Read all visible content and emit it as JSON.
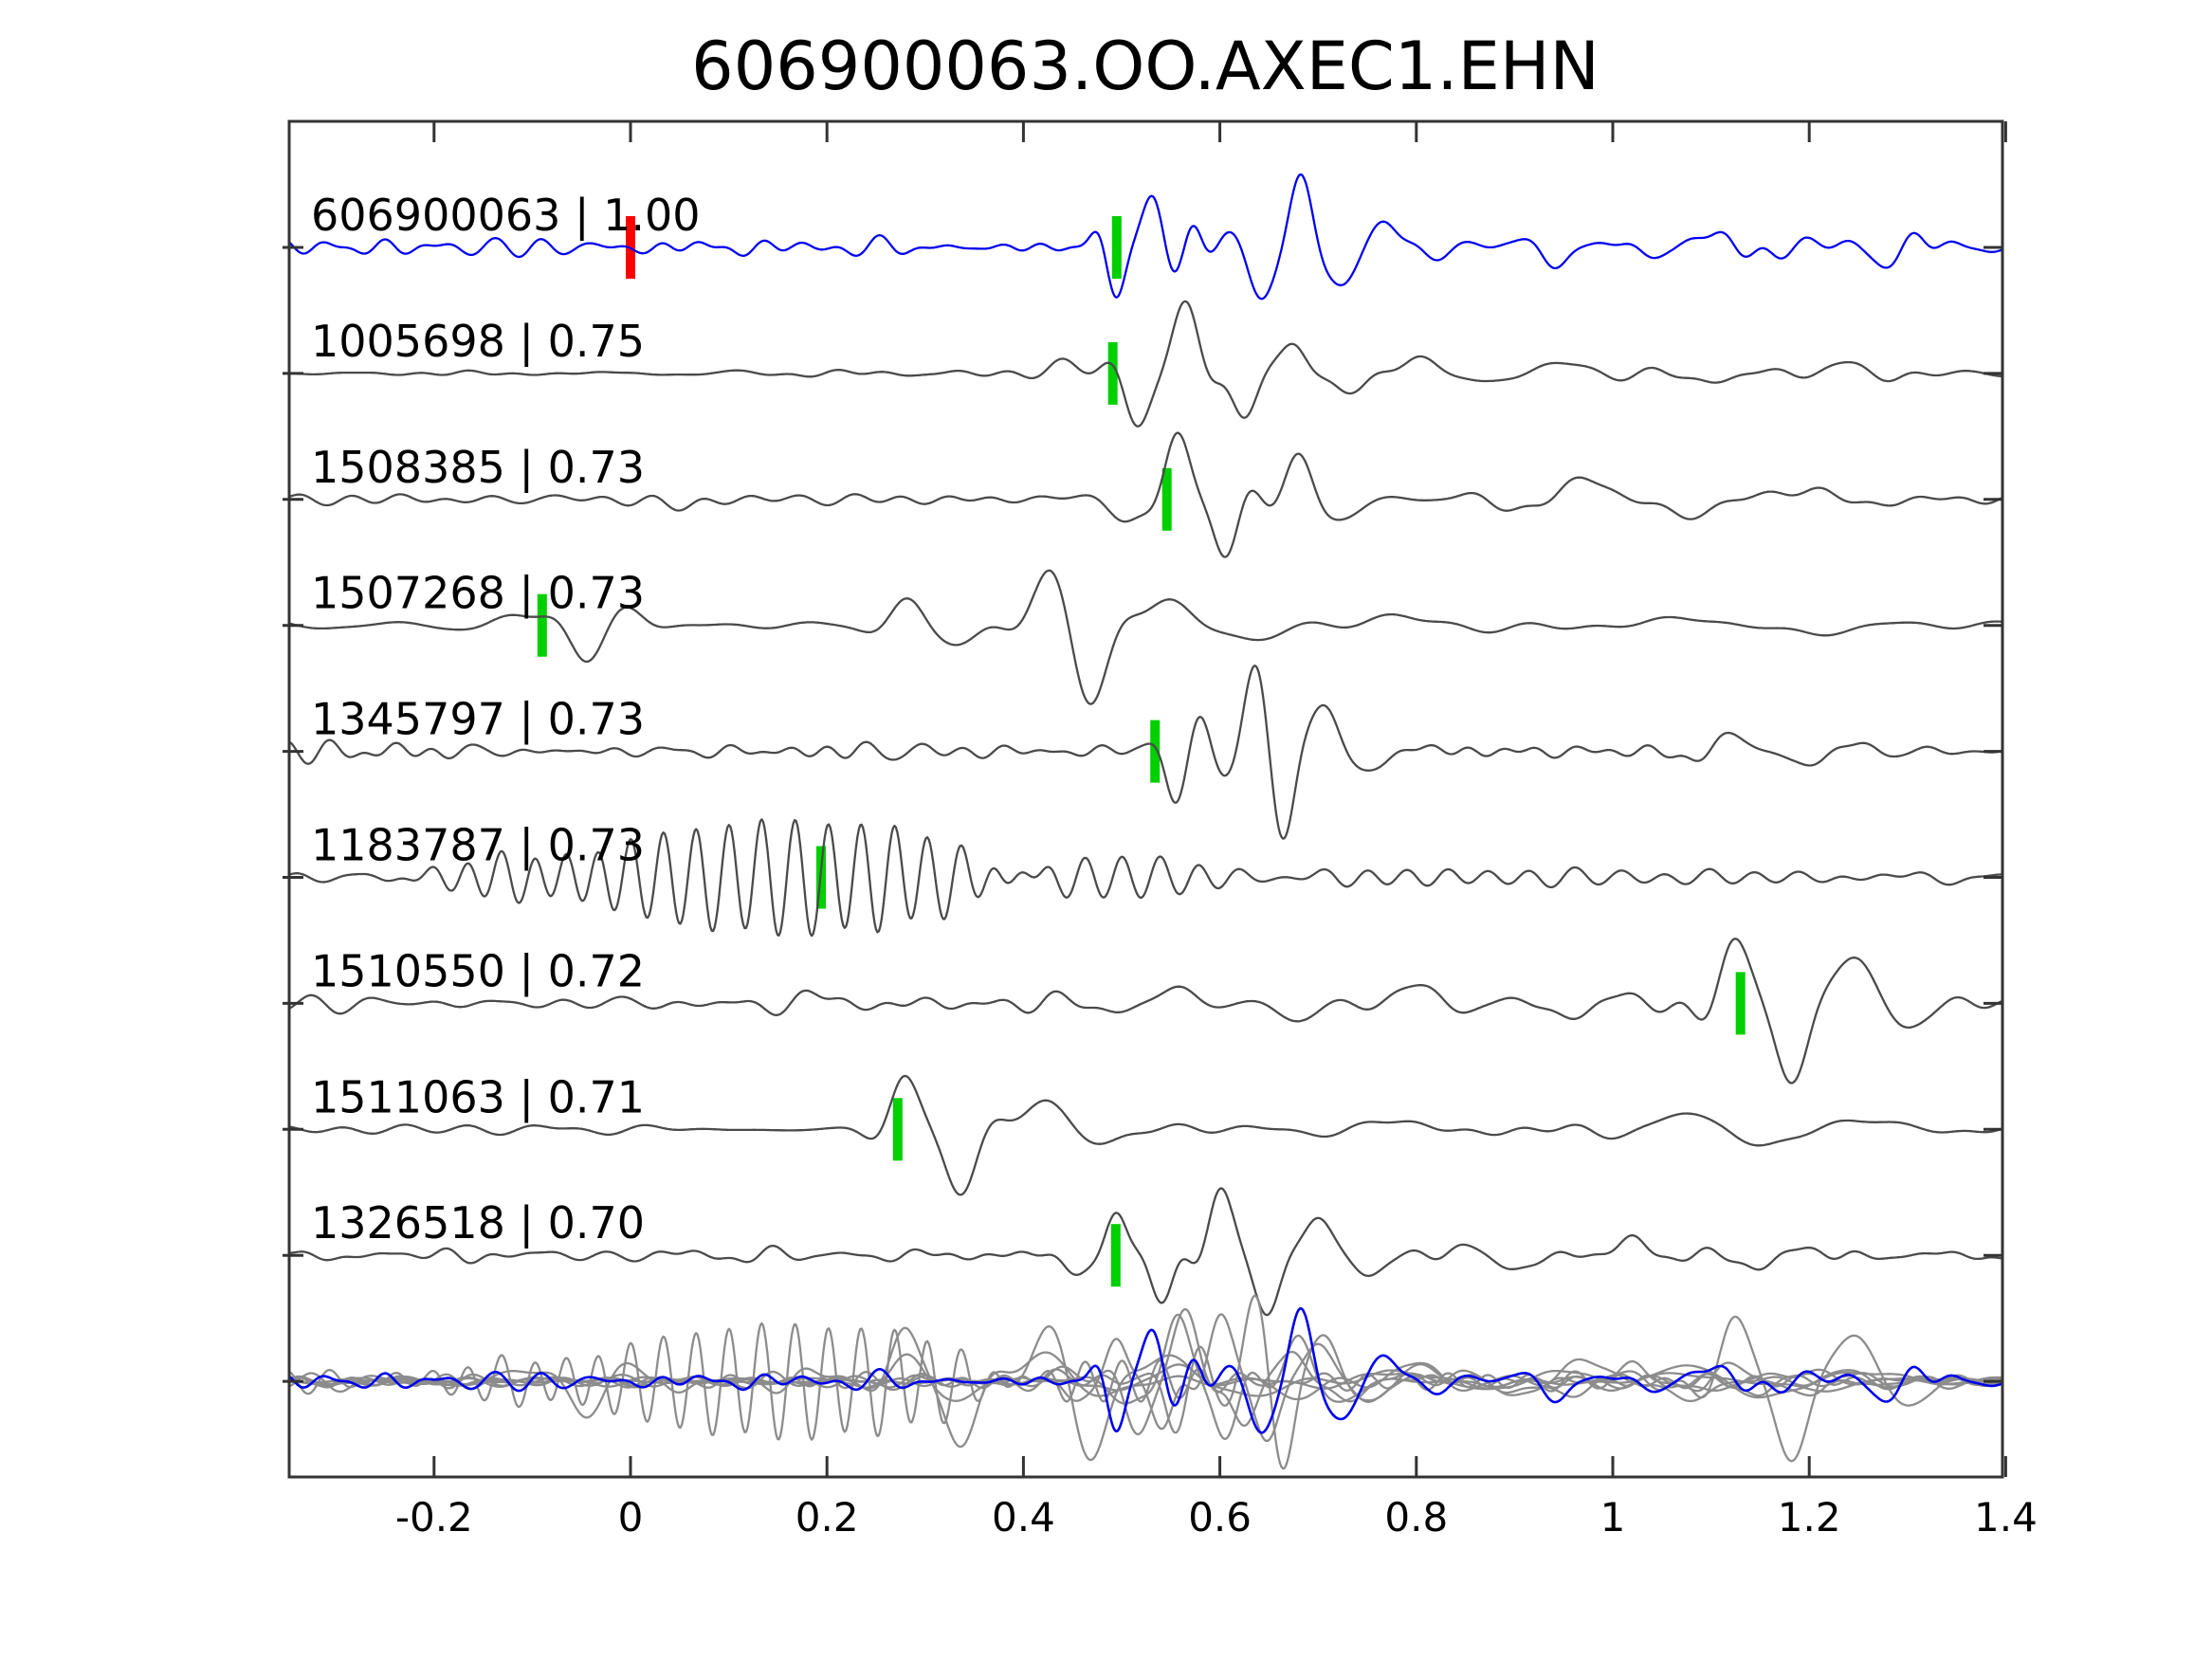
{
  "chart_data": {
    "type": "line",
    "title": "606900063.OO.AXEC1.EHN",
    "xlabel": "",
    "ylabel": "",
    "xlim": [
      -0.3475,
      1.3967
    ],
    "grid": false,
    "legend": null,
    "x_ticks": {
      "values": [
        -0.2,
        0,
        0.2,
        0.4,
        0.6,
        0.8,
        1,
        1.2,
        1.4
      ],
      "labels": [
        "-0.2",
        "0",
        "0.2",
        "0.4",
        "0.6",
        "0.8",
        "1",
        "1.2",
        "1.4"
      ]
    },
    "colors": {
      "template_trace": "#0000ee",
      "match_trace": "#4a4a4a",
      "stack_gray": "#8c8c8c",
      "pick_marker": "#00cf00",
      "reference_marker": "#ff0000",
      "frame": "#333333",
      "text": "#000000",
      "background": "#ffffff"
    },
    "traces": [
      {
        "id": "606900063",
        "corr": "1.00",
        "label": "606900063 | 1.00",
        "row": 0,
        "color": "#0000ee",
        "pick": {
          "t": 0.495,
          "color": "#00cf00"
        },
        "ref_mark": {
          "t": 0.0,
          "color": "#ff0000"
        },
        "synth": {
          "seed": 11,
          "noise_amp": 9,
          "noise_f": [
            8,
            32
          ],
          "noise_env": null,
          "packets": [
            [
              0.493,
              0.016,
              20,
              -45
            ],
            [
              0.532,
              0.02,
              16,
              55
            ],
            [
              0.572,
              0.016,
              18,
              28
            ],
            [
              0.641,
              0.02,
              14,
              -52
            ],
            [
              0.683,
              0.018,
              15,
              68
            ],
            [
              0.727,
              0.022,
              12,
              -28
            ],
            [
              0.772,
              0.03,
              10,
              20
            ],
            [
              0.95,
              0.04,
              9,
              -16
            ],
            [
              1.1,
              0.05,
              8,
              14
            ],
            [
              1.27,
              0.05,
              9,
              -14
            ]
          ]
        }
      },
      {
        "id": "1005698",
        "corr": "0.75",
        "label": "1005698 | 0.75",
        "row": 1,
        "color": "#4a4a4a",
        "pick": {
          "t": 0.491,
          "color": "#00cf00"
        },
        "synth": {
          "seed": 22,
          "noise_amp": 4.5,
          "noise_f": [
            6,
            26
          ],
          "noise_env": [
            [
              -0.35,
              0.5
            ],
            [
              0.2,
              0.75
            ],
            [
              0.42,
              1
            ],
            [
              1.4,
              1
            ]
          ],
          "packets": [
            [
              0.44,
              0.02,
              10,
              12
            ],
            [
              0.515,
              0.02,
              13,
              -50
            ],
            [
              0.565,
              0.022,
              12,
              75
            ],
            [
              0.625,
              0.02,
              13,
              -48
            ],
            [
              0.675,
              0.02,
              12,
              28
            ],
            [
              0.73,
              0.03,
              9,
              -16
            ],
            [
              0.8,
              0.04,
              8,
              14
            ],
            [
              0.95,
              0.05,
              7,
              12
            ],
            [
              1.1,
              0.05,
              7,
              -11
            ],
            [
              1.23,
              0.04,
              8,
              10
            ]
          ]
        }
      },
      {
        "id": "1508385",
        "corr": "0.73",
        "label": "1508385 | 0.73",
        "row": 2,
        "color": "#4a4a4a",
        "pick": {
          "t": 0.546,
          "color": "#00cf00"
        },
        "synth": {
          "seed": 33,
          "noise_amp": 5.5,
          "noise_f": [
            6,
            24
          ],
          "noise_env": null,
          "packets": [
            [
              0.05,
              0.03,
              8,
              -12
            ],
            [
              0.5,
              0.03,
              9,
              -18
            ],
            [
              0.557,
              0.02,
              13,
              70
            ],
            [
              0.606,
              0.02,
              13,
              -58
            ],
            [
              0.679,
              0.022,
              12,
              46
            ],
            [
              0.73,
              0.03,
              9,
              -20
            ],
            [
              0.97,
              0.05,
              7,
              22
            ],
            [
              1.08,
              0.05,
              7,
              -18
            ],
            [
              1.2,
              0.05,
              7,
              12
            ]
          ]
        }
      },
      {
        "id": "1507268",
        "corr": "0.73",
        "label": "1507268 | 0.73",
        "row": 3,
        "color": "#4a4a4a",
        "pick": {
          "t": -0.09,
          "color": "#00cf00"
        },
        "synth": {
          "seed": 44,
          "noise_amp": 4.5,
          "noise_f": [
            4,
            15
          ],
          "noise_env": null,
          "packets": [
            [
              -0.125,
              0.03,
              8,
              10
            ],
            [
              -0.045,
              0.026,
              10,
              -36
            ],
            [
              0.0,
              0.025,
              10,
              14
            ],
            [
              0.28,
              0.025,
              10,
              26
            ],
            [
              0.335,
              0.03,
              8,
              -16
            ],
            [
              0.425,
              0.028,
              9,
              46
            ],
            [
              0.468,
              0.026,
              9,
              -72
            ],
            [
              0.548,
              0.035,
              8,
              26
            ],
            [
              0.64,
              0.05,
              6,
              -14
            ],
            [
              0.78,
              0.06,
              5,
              10
            ],
            [
              1.05,
              0.07,
              5,
              9
            ],
            [
              1.22,
              0.05,
              6,
              -12
            ]
          ]
        }
      },
      {
        "id": "1345797",
        "corr": "0.73",
        "label": "1345797 | 0.73",
        "row": 4,
        "color": "#4a4a4a",
        "pick": {
          "t": 0.534,
          "color": "#00cf00"
        },
        "synth": {
          "seed": 55,
          "noise_amp": 8,
          "noise_f": [
            10,
            36
          ],
          "noise_env": [
            [
              -0.35,
              1.4
            ],
            [
              0.05,
              1.1
            ],
            [
              0.45,
              0.75
            ],
            [
              1.4,
              0.75
            ]
          ],
          "packets": [
            [
              0.555,
              0.016,
              15,
              -52
            ],
            [
              0.582,
              0.014,
              16,
              24
            ],
            [
              0.635,
              0.02,
              13,
              72
            ],
            [
              0.664,
              0.018,
              14,
              -70
            ],
            [
              0.705,
              0.02,
              12,
              40
            ],
            [
              0.76,
              0.03,
              10,
              -18
            ],
            [
              1.12,
              0.04,
              10,
              18
            ],
            [
              1.2,
              0.04,
              10,
              -14
            ]
          ]
        }
      },
      {
        "id": "1183787",
        "corr": "0.73",
        "label": "1183787 | 0.73",
        "row": 5,
        "color": "#4a4a4a",
        "pick": {
          "t": 0.194,
          "color": "#00cf00"
        },
        "synth": {
          "seed": 66,
          "noise_amp": 5.5,
          "noise_f": [
            6,
            24
          ],
          "noise_env": null,
          "packets": [
            [
              -0.13,
              0.05,
              28,
              16
            ],
            [
              0.1,
              0.12,
              30,
              54
            ],
            [
              0.27,
              0.08,
              30,
              34
            ],
            [
              0.5,
              0.09,
              26,
              20
            ],
            [
              0.75,
              0.12,
              24,
              10
            ],
            [
              1.05,
              0.15,
              22,
              7
            ]
          ]
        }
      },
      {
        "id": "1510550",
        "corr": "0.72",
        "label": "1510550 | 0.72",
        "row": 6,
        "color": "#4a4a4a",
        "pick": {
          "t": 1.13,
          "color": "#00cf00"
        },
        "synth": {
          "seed": 77,
          "noise_amp": 8,
          "noise_f": [
            6,
            26
          ],
          "noise_env": null,
          "packets": [
            [
              0.2,
              0.05,
              8,
              12
            ],
            [
              0.55,
              0.05,
              8,
              18
            ],
            [
              0.68,
              0.04,
              8,
              -20
            ],
            [
              0.8,
              0.05,
              7,
              18
            ],
            [
              0.95,
              0.05,
              7,
              -14
            ],
            [
              1.123,
              0.025,
              11,
              62
            ],
            [
              1.183,
              0.026,
              10,
              -75
            ],
            [
              1.245,
              0.028,
              9,
              42
            ],
            [
              1.31,
              0.03,
              9,
              -20
            ]
          ]
        }
      },
      {
        "id": "1511063",
        "corr": "0.71",
        "label": "1511063 | 0.71",
        "row": 7,
        "color": "#4a4a4a",
        "pick": {
          "t": 0.272,
          "color": "#00cf00"
        },
        "synth": {
          "seed": 88,
          "noise_amp": 5,
          "noise_f": [
            5,
            20
          ],
          "noise_env": null,
          "packets": [
            [
              0.278,
              0.022,
              11,
              54
            ],
            [
              0.336,
              0.026,
              10,
              -72
            ],
            [
              0.422,
              0.03,
              8,
              30
            ],
            [
              0.49,
              0.04,
              7,
              -12
            ],
            [
              0.78,
              0.06,
              5,
              8
            ],
            [
              1.07,
              0.05,
              6,
              14
            ],
            [
              1.16,
              0.05,
              6,
              -12
            ],
            [
              1.27,
              0.05,
              6,
              12
            ]
          ]
        }
      },
      {
        "id": "1326518",
        "corr": "0.70",
        "label": "1326518 | 0.70",
        "row": 8,
        "color": "#4a4a4a",
        "pick": {
          "t": 0.494,
          "color": "#00cf00"
        },
        "synth": {
          "seed": 99,
          "noise_amp": 7,
          "noise_f": [
            7,
            28
          ],
          "noise_env": null,
          "packets": [
            [
              0.45,
              0.02,
              12,
              -18
            ],
            [
              0.494,
              0.016,
              15,
              42
            ],
            [
              0.542,
              0.018,
              14,
              -48
            ],
            [
              0.6,
              0.02,
              13,
              70
            ],
            [
              0.648,
              0.02,
              13,
              -55
            ],
            [
              0.7,
              0.022,
              12,
              38
            ],
            [
              0.76,
              0.03,
              10,
              -20
            ],
            [
              0.9,
              0.04,
              8,
              -14
            ],
            [
              1.02,
              0.04,
              8,
              18
            ],
            [
              1.14,
              0.04,
              9,
              -14
            ]
          ]
        }
      }
    ],
    "stack_row": {
      "row": 9,
      "description": "all matched traces overlaid in gray with template overlaid in blue",
      "gray_members": [
        1,
        2,
        3,
        4,
        5,
        6,
        7,
        8
      ],
      "blue_member": 0,
      "gray_color": "#8c8c8c",
      "blue_color": "#0000ee"
    }
  }
}
